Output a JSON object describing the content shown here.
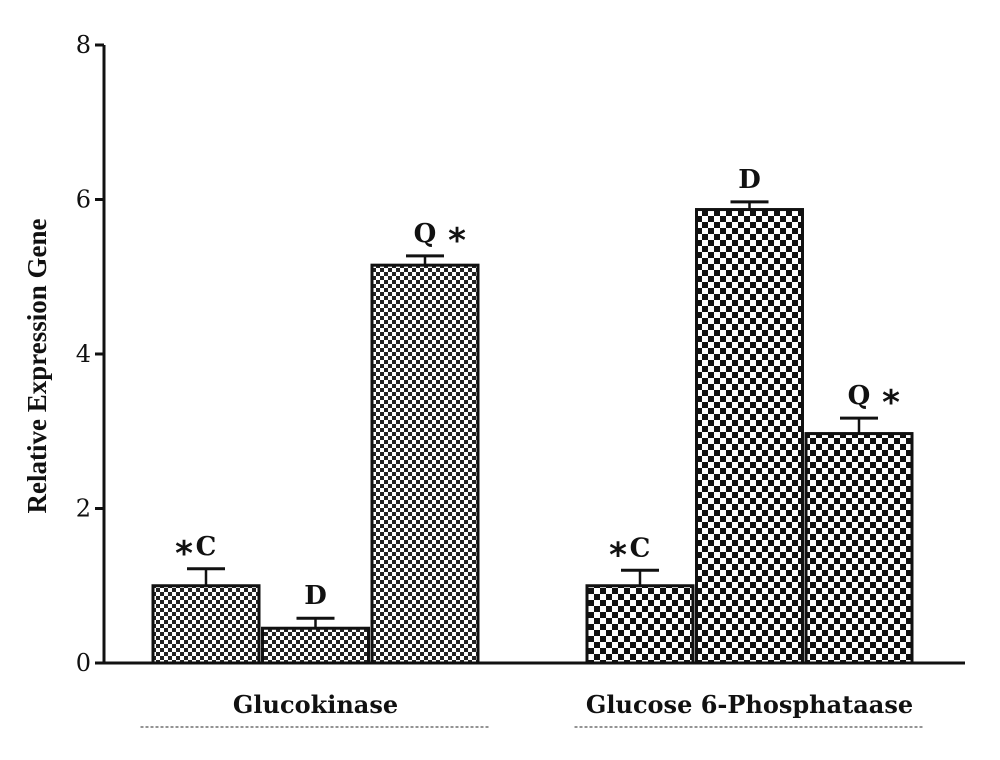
{
  "chart_data": {
    "type": "bar",
    "ylabel": "Relative Expression Gene",
    "ylim": [
      0,
      8
    ],
    "yticks": [
      0,
      2,
      4,
      6,
      8
    ],
    "grid": false,
    "groups": [
      {
        "name": "Glucokinase",
        "bars": [
          {
            "label": "C",
            "value": 1.0,
            "error": 0.22,
            "star": "left",
            "pattern": "fine"
          },
          {
            "label": "D",
            "value": 0.45,
            "error": 0.13,
            "star": "none",
            "pattern": "fine"
          },
          {
            "label": "Q",
            "value": 5.15,
            "error": 0.12,
            "star": "right",
            "pattern": "fine"
          }
        ]
      },
      {
        "name": "Glucose 6-Phosphataase",
        "bars": [
          {
            "label": "C",
            "value": 1.0,
            "error": 0.2,
            "star": "left",
            "pattern": "coarse"
          },
          {
            "label": "D",
            "value": 5.87,
            "error": 0.1,
            "star": "none",
            "pattern": "coarse"
          },
          {
            "label": "Q",
            "value": 2.97,
            "error": 0.2,
            "star": "right",
            "pattern": "coarse"
          }
        ]
      }
    ],
    "star_symbol": "*"
  }
}
